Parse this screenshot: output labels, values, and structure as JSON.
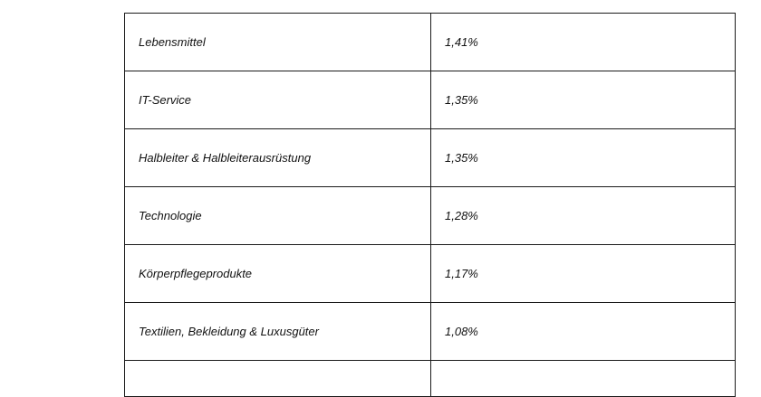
{
  "table": {
    "rows": [
      {
        "sector": "Lebensmittel",
        "weight": "1,41%"
      },
      {
        "sector": "IT-Service",
        "weight": "1,35%"
      },
      {
        "sector": "Halbleiter & Halbleiterausrüstung",
        "weight": "1,35%"
      },
      {
        "sector": "Technologie",
        "weight": "1,28%"
      },
      {
        "sector": "Körperpflegeprodukte",
        "weight": "1,17%"
      },
      {
        "sector": "Textilien, Bekleidung & Luxusgüter",
        "weight": "1,08%"
      }
    ]
  }
}
